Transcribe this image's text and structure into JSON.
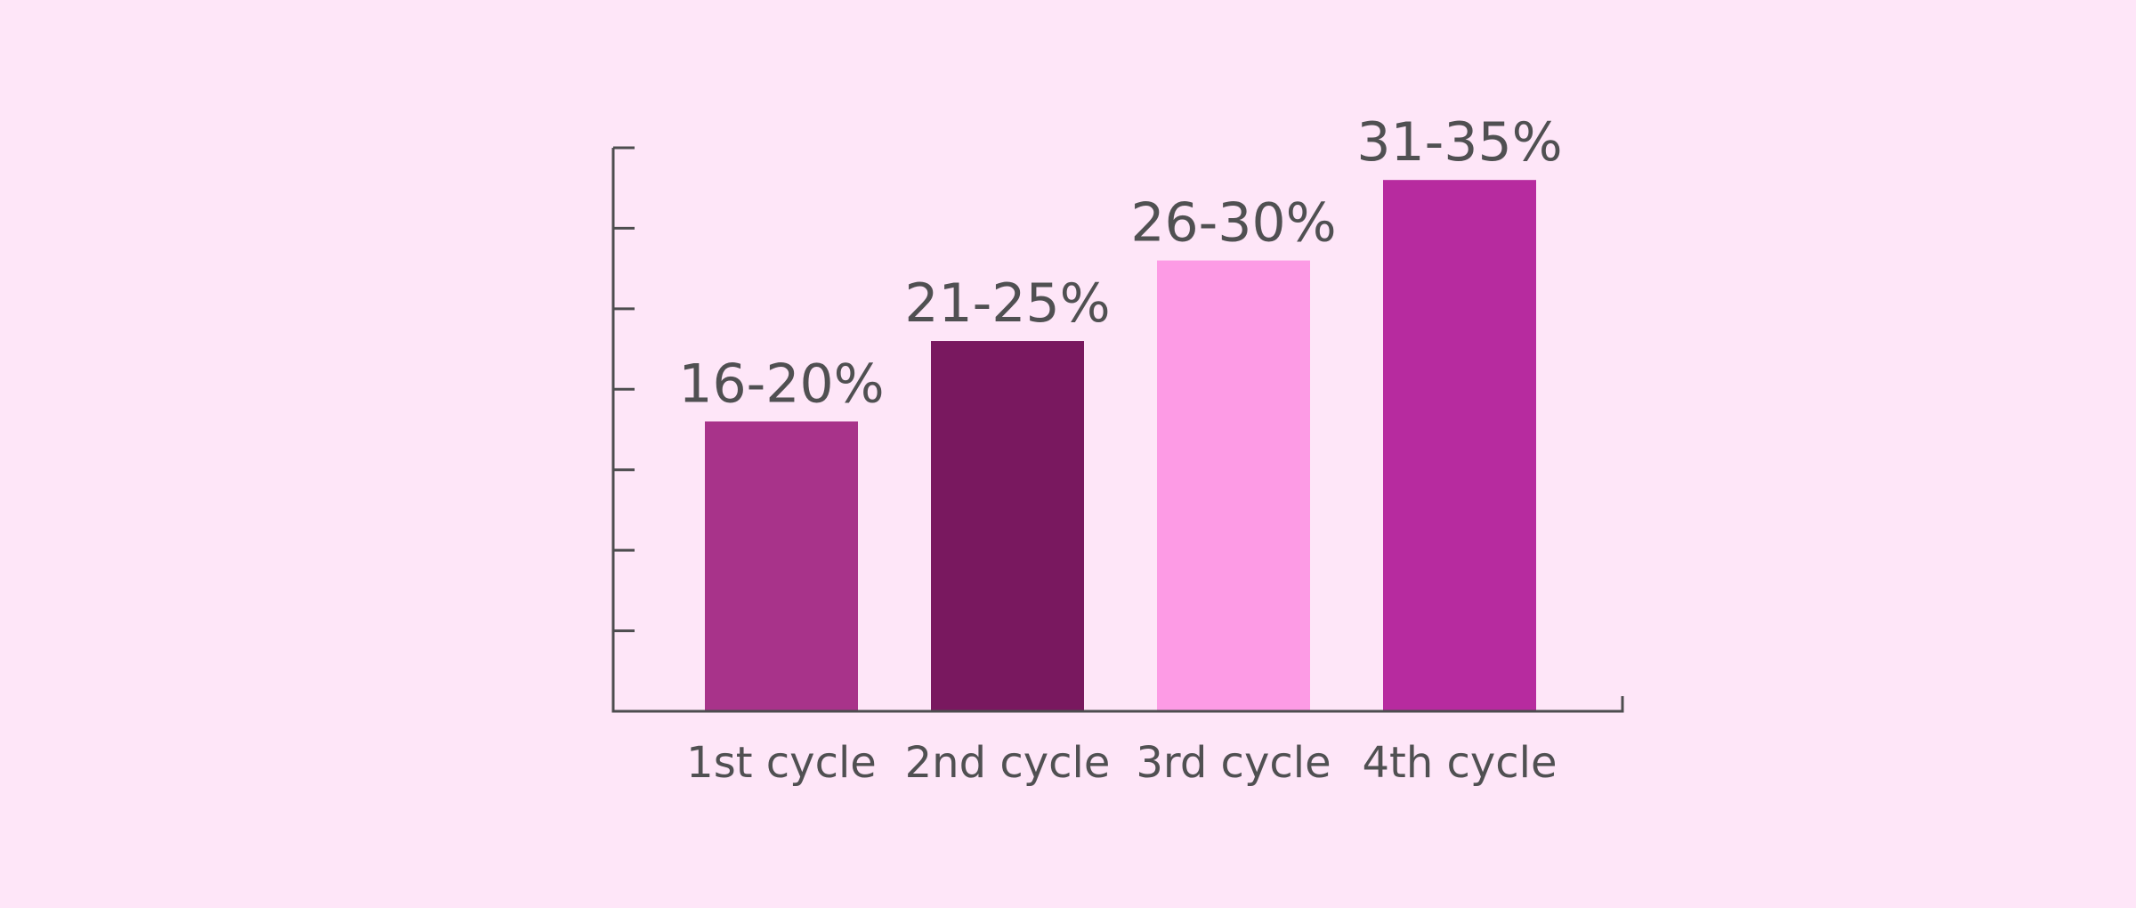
{
  "background_color": "#fee6f8",
  "chart_data": {
    "type": "bar",
    "categories": [
      "1st cycle",
      "2nd cycle",
      "3rd cycle",
      "4th cycle"
    ],
    "values": [
      18,
      23,
      28,
      33
    ],
    "data_labels": [
      "16-20%",
      "21-25%",
      "26-30%",
      "31-35%"
    ],
    "bar_colors": [
      "#a8338a",
      "#79185f",
      "#fd9be5",
      "#b72b9f"
    ],
    "ylim": [
      0,
      35
    ],
    "y_ticks": [
      0,
      5,
      10,
      15,
      20,
      25,
      30,
      35
    ],
    "y_tick_labels_shown": false,
    "grid": false,
    "legend": "none",
    "title": "",
    "xlabel": "",
    "ylabel": ""
  }
}
